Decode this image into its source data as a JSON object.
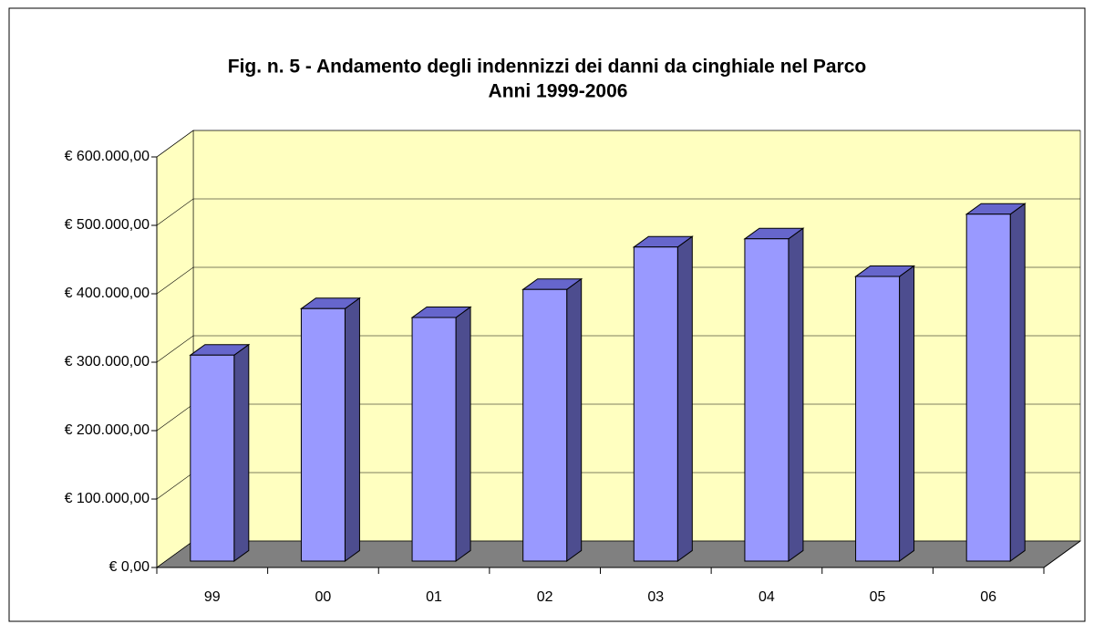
{
  "chart_data": {
    "type": "bar3d",
    "title": "Fig. n. 5 - Andamento degli indennizzi dei danni da cinghiale nel Parco",
    "subtitle": "Anni 1999-2006",
    "categories": [
      "99",
      "00",
      "01",
      "02",
      "03",
      "04",
      "05",
      "06"
    ],
    "values": [
      301000,
      369000,
      356000,
      397000,
      459000,
      471000,
      416000,
      507000
    ],
    "color": "#9999ff",
    "ylim": [
      0,
      600000
    ],
    "yticks": [
      {
        "value": 0,
        "label": "€ 0,00"
      },
      {
        "value": 100000,
        "label": "€ 100.000,00"
      },
      {
        "value": 200000,
        "label": "€ 200.000,00"
      },
      {
        "value": 300000,
        "label": "€ 300.000,00"
      },
      {
        "value": 400000,
        "label": "€ 400.000,00"
      },
      {
        "value": 500000,
        "label": "€ 500.000,00"
      },
      {
        "value": 600000,
        "label": "€ 600.000,00"
      }
    ],
    "grid": true
  }
}
